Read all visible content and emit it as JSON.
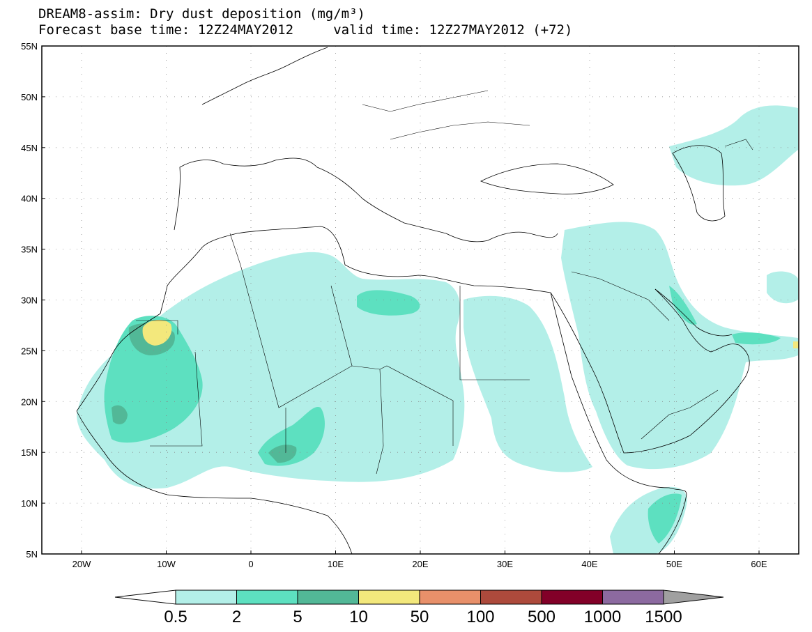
{
  "title": {
    "line1": "DREAM8-assim: Dry dust deposition (mg/m³)",
    "line2": "Forecast base time: 12Z24MAY2012     valid time: 12Z27MAY2012 (+72)"
  },
  "axes": {
    "lat_labels": [
      "55N",
      "50N",
      "45N",
      "40N",
      "35N",
      "30N",
      "25N",
      "20N",
      "15N",
      "10N",
      "5N"
    ],
    "lon_labels": [
      "20W",
      "10W",
      "0",
      "10E",
      "20E",
      "30E",
      "40E",
      "50E",
      "60E"
    ]
  },
  "colorbar": {
    "labels": [
      "0.5",
      "2",
      "5",
      "10",
      "50",
      "100",
      "500",
      "1000",
      "1500"
    ],
    "colors": [
      "#b3efe8",
      "#5de0c0",
      "#52b897",
      "#f3e87c",
      "#e8906a",
      "#ad4a3c",
      "#820028",
      "#8c6aa0"
    ],
    "under_color": "#ffffff",
    "over_color": "#a0a0a0"
  },
  "field_colors": {
    "c05": "#b3efe8",
    "c2": "#5de0c0",
    "c5": "#52b897",
    "c10": "#f3e87c"
  }
}
